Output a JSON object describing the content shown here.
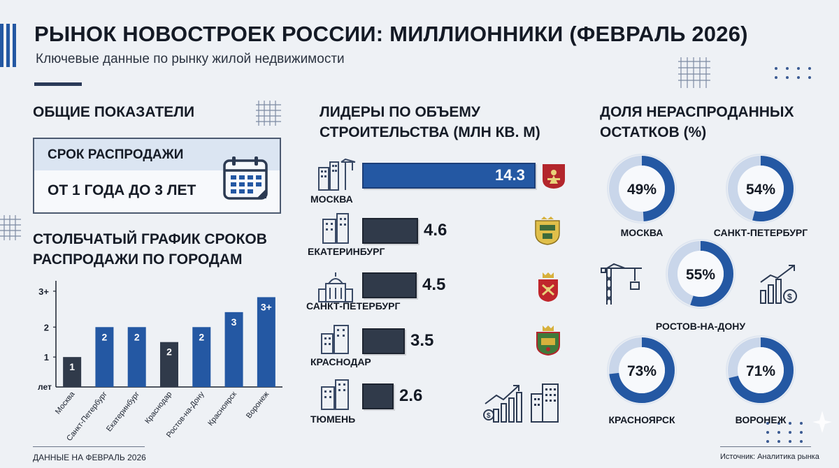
{
  "header": {
    "title": "РЫНОК НОВОСТРОЕК РОССИИ: МИЛЛИОННИКИ (ФЕВРАЛЬ 2026)",
    "subtitle": "Ключевые данные по рынку жилой недвижимости"
  },
  "overview": {
    "heading": "ОБЩИЕ ПОКАЗАТЕЛИ",
    "card_title": "СРОК РАСПРОДАЖИ",
    "card_value": "ОТ 1 ГОДА ДО 3 ЛЕТ"
  },
  "colors": {
    "blue": "#2458a3",
    "dark": "#303a4a",
    "light_ring": "#c9d6ea",
    "accent_red": "#b3262c",
    "gold": "#d7b13c"
  },
  "chart_data": [
    {
      "type": "bar",
      "title": "СТОЛБЧАТЫЙ ГРАФИК СРОКОВ РАСПРОДАЖИ ПО ГОРОДАМ",
      "ylabel": "лет",
      "ylim": [
        0,
        3.5
      ],
      "yticks": [
        "1",
        "2",
        "3+"
      ],
      "categories": [
        "Москва",
        "Санкт-Петербург",
        "Екатеринбург",
        "Краснодар",
        "Ростов-на-Дону",
        "Красноярск",
        "Воронеж"
      ],
      "values": [
        1,
        2,
        2,
        1.5,
        2,
        2.5,
        3
      ],
      "value_labels": [
        "1",
        "2",
        "2",
        "2",
        "2",
        "3",
        "3+"
      ],
      "bar_colors": [
        "dark",
        "blue",
        "blue",
        "dark",
        "blue",
        "blue",
        "blue"
      ]
    },
    {
      "type": "bar",
      "orientation": "horizontal",
      "title": "ЛИДЕРЫ ПО ОБЪЕМУ СТРОИТЕЛЬСТВА (МЛН КВ. М)",
      "categories": [
        "МОСКВА",
        "ЕКАТЕРИНБУРГ",
        "САНКТ-ПЕТЕРБУРГ",
        "КРАСНОДАР",
        "ТЮМЕНЬ"
      ],
      "values": [
        14.3,
        4.6,
        4.5,
        3.5,
        2.6
      ],
      "value_labels": [
        "14.3",
        "4.6",
        "4.5",
        "3.5",
        "2.6"
      ]
    },
    {
      "type": "pie",
      "title": "ДОЛЯ НЕРАСПРОДАННЫХ ОСТАТКОВ (%)",
      "categories": [
        "МОСКВА",
        "САНКТ-ПЕТЕРБУРГ",
        "РОСТОВ-НА-ДОНУ",
        "КРАСНОЯРСК",
        "ВОРОНЕЖ"
      ],
      "values": [
        49,
        54,
        55,
        73,
        71
      ],
      "value_labels": [
        "49%",
        "54%",
        "55%",
        "73%",
        "71%"
      ]
    }
  ],
  "footer": {
    "left": "ДАННЫЕ НА ФЕВРАЛЬ 2026",
    "right": "Источник: Аналитика рынка"
  },
  "icons": {
    "calendar": "calendar-icon",
    "crane": "construction-crane-icon",
    "growth": "growth-chart-icon",
    "building": "building-icon"
  }
}
